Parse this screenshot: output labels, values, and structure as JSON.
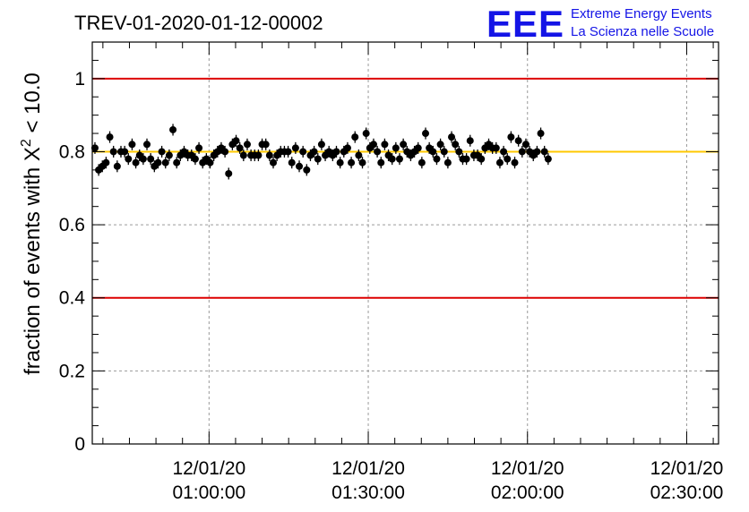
{
  "chart_data": {
    "type": "scatter",
    "title": "TREV-01-2020-01-12-00002",
    "logo": {
      "mark": "EEE",
      "line1": "Extreme Energy Events",
      "line2": "La Scienza nelle Scuole",
      "color": "#1414e6"
    },
    "ylabel": {
      "prefix": "fraction of events with ",
      "symbol": "X",
      "superscript": "2",
      "suffix": " < 10.0"
    },
    "ylim": [
      0,
      1.1
    ],
    "xlim": [
      "00:38:00",
      "02:36:00"
    ],
    "y_ticks": [
      "0",
      "0.2",
      "0.4",
      "0.6",
      "0.8",
      "1"
    ],
    "x_ticks": [
      {
        "time": "01:00:00",
        "date_label": "12/01/20",
        "time_label": "01:00:00"
      },
      {
        "time": "01:30:00",
        "date_label": "12/01/20",
        "time_label": "01:30:00"
      },
      {
        "time": "02:00:00",
        "date_label": "12/01/20",
        "time_label": "02:00:00"
      },
      {
        "time": "02:30:00",
        "date_label": "12/01/20",
        "time_label": "02:30:00"
      }
    ],
    "grid": true,
    "reference_lines": [
      {
        "y": 1.0,
        "color": "#dd0000"
      },
      {
        "y": 0.4,
        "color": "#dd0000"
      },
      {
        "y": 0.8,
        "color": "#ffc800"
      }
    ],
    "marker_color": "#000000",
    "series": [
      {
        "x_start": "00:38:30",
        "x_step_seconds": 42,
        "error": 0.016,
        "y": [
          0.81,
          0.75,
          0.76,
          0.77,
          0.84,
          0.8,
          0.76,
          0.8,
          0.8,
          0.78,
          0.82,
          0.77,
          0.79,
          0.78,
          0.82,
          0.78,
          0.76,
          0.77,
          0.8,
          0.77,
          0.79,
          0.86,
          0.77,
          0.79,
          0.8,
          0.79,
          0.79,
          0.78,
          0.81,
          0.77,
          0.78,
          0.77,
          0.79,
          0.8,
          0.81,
          0.8,
          0.74,
          0.82,
          0.83,
          0.81,
          0.79,
          0.82,
          0.79,
          0.79,
          0.79,
          0.82,
          0.82,
          0.79,
          0.77,
          0.79,
          0.8,
          0.8,
          0.8,
          0.77,
          0.81,
          0.76,
          0.8,
          0.75,
          0.79,
          0.8,
          0.78,
          0.82,
          0.79,
          0.8,
          0.79,
          0.8,
          0.77,
          0.8,
          0.81,
          0.77,
          0.84,
          0.79,
          0.77,
          0.85,
          0.81,
          0.82,
          0.8,
          0.77,
          0.82,
          0.79,
          0.78,
          0.81,
          0.78,
          0.82,
          0.8,
          0.79,
          0.8,
          0.81,
          0.77,
          0.85,
          0.81,
          0.8,
          0.78,
          0.82,
          0.8,
          0.77,
          0.84,
          0.82,
          0.8,
          0.78,
          0.78,
          0.83,
          0.79,
          0.79,
          0.78,
          0.81,
          0.82,
          0.81,
          0.81,
          0.77,
          0.8,
          0.78,
          0.84,
          0.77,
          0.83,
          0.8,
          0.82,
          0.8,
          0.79,
          0.8,
          0.85,
          0.8,
          0.78
        ]
      }
    ]
  }
}
